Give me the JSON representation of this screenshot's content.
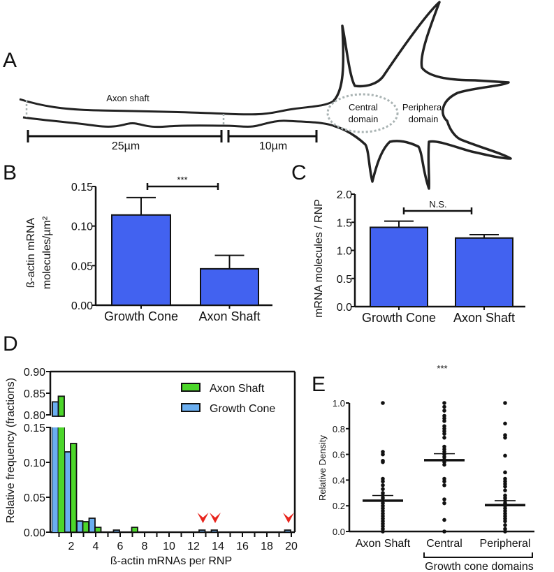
{
  "panel_labels": {
    "a": "A",
    "b": "B",
    "c": "C",
    "d": "D",
    "e": "E"
  },
  "panel_a": {
    "axon_shaft": "Axon shaft",
    "central_line1": "Central",
    "central_line2": "domain",
    "peripheral_line1": "Periphera",
    "peripheral_line2": "domain",
    "scale_long": "25µm",
    "scale_short": "10µm",
    "outline_color": "#222222",
    "dashed_color": "#a9b3b3"
  },
  "chart_data": [
    {
      "panel": "B",
      "type": "bar",
      "categories": [
        "Growth Cone",
        "Axon Shaft"
      ],
      "values": [
        0.114,
        0.046
      ],
      "error_upper": [
        0.136,
        0.063
      ],
      "ylabel_line1": "ß-actin mRNA",
      "ylabel_line2": "molecules/µm²",
      "ylim": [
        0,
        0.15
      ],
      "yticks": [
        "0.00",
        "0.05",
        "0.10",
        "0.15"
      ],
      "significance": "***",
      "bar_color": "#4262f0"
    },
    {
      "panel": "C",
      "type": "bar",
      "categories": [
        "Growth Cone",
        "Axon Shaft"
      ],
      "values": [
        1.41,
        1.22
      ],
      "error_upper": [
        1.52,
        1.28
      ],
      "ylabel": "mRNA molecules / RNP",
      "ylim": [
        0,
        2.0
      ],
      "yticks": [
        "0.0",
        "0.5",
        "1.0",
        "1.5",
        "2.0"
      ],
      "significance": "N.S.",
      "bar_color": "#4262f0"
    },
    {
      "panel": "D",
      "type": "bar",
      "xlabel": "ß-actin mRNAs per RNP",
      "ylabel": "Relative frequency (fractions)",
      "x": [
        1,
        2,
        3,
        4,
        5,
        6,
        7,
        8,
        9,
        10,
        11,
        12,
        13,
        14,
        15,
        16,
        17,
        18,
        19,
        20
      ],
      "xticks": [
        "2",
        "4",
        "6",
        "8",
        "10",
        "12",
        "14",
        "16",
        "18",
        "20"
      ],
      "yticks_lower": [
        "0.00",
        "0.05",
        "0.10",
        "0.15"
      ],
      "yticks_upper": [
        "0.80",
        "0.85",
        "0.90"
      ],
      "ylim_lower": [
        0,
        0.15
      ],
      "ylim_upper": [
        0.8,
        0.9
      ],
      "legend_position": "top-right",
      "series": [
        {
          "name": "Axon Shaft",
          "color": "#4cd62a",
          "values": [
            0.843,
            0.127,
            0.015,
            0.007,
            0,
            0,
            0.007,
            0,
            0,
            0,
            0,
            0,
            0,
            0,
            0,
            0,
            0,
            0,
            0,
            0
          ]
        },
        {
          "name": "Growth Cone",
          "color": "#6aaef0",
          "values": [
            0.83,
            0.115,
            0.016,
            0.02,
            0,
            0.003,
            0,
            0,
            0,
            0,
            0,
            0,
            0.003,
            0.003,
            0,
            0,
            0,
            0,
            0,
            0.003
          ]
        }
      ],
      "arrow_bins": [
        13,
        14,
        20
      ],
      "arrow_color": "#e8251d"
    },
    {
      "panel": "E",
      "type": "scatter",
      "ylabel": "Relative Density",
      "ylim": [
        0,
        1.0
      ],
      "yticks": [
        "0.0",
        "0.2",
        "0.4",
        "0.6",
        "0.8",
        "1.0"
      ],
      "categories": [
        "Axon Shaft",
        "Central",
        "Peripheral"
      ],
      "group_label": "Growth cone domains",
      "significance": "***",
      "means": [
        0.24,
        0.555,
        0.205
      ],
      "sem_upper": [
        0.28,
        0.605,
        0.24
      ],
      "points": [
        [
          1.0,
          0.62,
          0.6,
          0.55,
          0.54,
          0.41,
          0.39,
          0.36,
          0.33,
          0.3,
          0.28,
          0.26,
          0.24,
          0.22,
          0.2,
          0.18,
          0.16,
          0.14,
          0.12,
          0.1,
          0.08,
          0.06,
          0.04,
          0.02,
          0.0
        ],
        [
          1.0,
          0.97,
          0.94,
          0.9,
          0.88,
          0.86,
          0.82,
          0.8,
          0.78,
          0.76,
          0.73,
          0.66,
          0.64,
          0.62,
          0.6,
          0.58,
          0.56,
          0.54,
          0.52,
          0.41,
          0.39,
          0.36,
          0.25,
          0.22,
          0.09,
          0.0
        ],
        [
          1.0,
          0.84,
          0.75,
          0.73,
          0.59,
          0.46,
          0.41,
          0.39,
          0.37,
          0.35,
          0.32,
          0.28,
          0.26,
          0.24,
          0.22,
          0.2,
          0.18,
          0.16,
          0.14,
          0.12,
          0.1,
          0.08,
          0.05,
          0.02,
          0.0
        ]
      ]
    }
  ]
}
